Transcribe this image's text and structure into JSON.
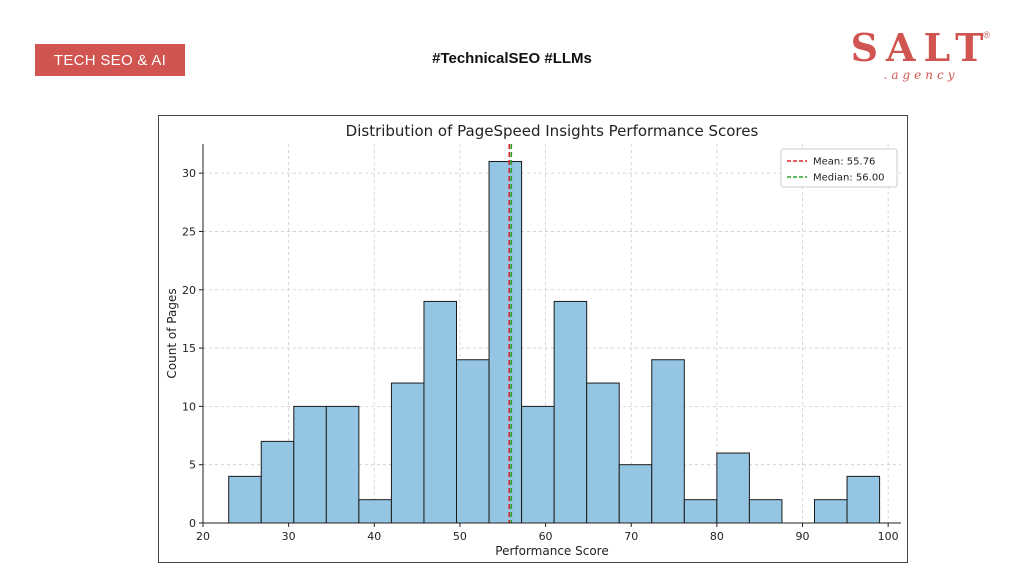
{
  "header": {
    "badge_label": "TECH SEO & AI",
    "hashtags": "#TechnicalSEO #LLMs",
    "logo": {
      "name": "SALT",
      "sub": ".agency",
      "registered": "®"
    }
  },
  "colors": {
    "brand": "#d0544f",
    "bar_fill": "#94c6e4",
    "bar_edge": "#1a1a1a",
    "mean_line": "#d62728",
    "median_line": "#2ca02c",
    "grid": "#cccccc"
  },
  "chart_data": {
    "type": "bar",
    "title": "Distribution of PageSpeed Insights Performance Scores",
    "xlabel": "Performance Score",
    "ylabel": "Count of Pages",
    "xlim": [
      20,
      101.5
    ],
    "ylim": [
      0,
      32.5
    ],
    "xticks": [
      20,
      30,
      40,
      50,
      60,
      70,
      80,
      90,
      100
    ],
    "yticks": [
      0,
      5,
      10,
      15,
      20,
      25,
      30
    ],
    "grid": true,
    "legend_position": "top-right",
    "bins": [
      {
        "x0": 23.0,
        "x1": 26.8,
        "count": 4
      },
      {
        "x0": 26.8,
        "x1": 30.6,
        "count": 7
      },
      {
        "x0": 30.6,
        "x1": 34.4,
        "count": 10
      },
      {
        "x0": 34.4,
        "x1": 38.2,
        "count": 10
      },
      {
        "x0": 38.2,
        "x1": 42.0,
        "count": 2
      },
      {
        "x0": 42.0,
        "x1": 45.8,
        "count": 12
      },
      {
        "x0": 45.8,
        "x1": 49.6,
        "count": 19
      },
      {
        "x0": 49.6,
        "x1": 53.4,
        "count": 14
      },
      {
        "x0": 53.4,
        "x1": 57.2,
        "count": 31
      },
      {
        "x0": 57.2,
        "x1": 61.0,
        "count": 10
      },
      {
        "x0": 61.0,
        "x1": 64.8,
        "count": 19
      },
      {
        "x0": 64.8,
        "x1": 68.6,
        "count": 12
      },
      {
        "x0": 68.6,
        "x1": 72.4,
        "count": 5
      },
      {
        "x0": 72.4,
        "x1": 76.2,
        "count": 14
      },
      {
        "x0": 76.2,
        "x1": 80.0,
        "count": 2
      },
      {
        "x0": 80.0,
        "x1": 83.8,
        "count": 6
      },
      {
        "x0": 83.8,
        "x1": 87.6,
        "count": 2
      },
      {
        "x0": 87.6,
        "x1": 91.4,
        "count": 0
      },
      {
        "x0": 91.4,
        "x1": 95.2,
        "count": 2
      },
      {
        "x0": 95.2,
        "x1": 99.0,
        "count": 4
      }
    ],
    "reference_lines": [
      {
        "label": "Mean: 55.76",
        "value": 55.76,
        "color": "#d62728",
        "style": "dashed"
      },
      {
        "label": "Median: 56.00",
        "value": 56.0,
        "color": "#2ca02c",
        "style": "dashed"
      }
    ]
  }
}
